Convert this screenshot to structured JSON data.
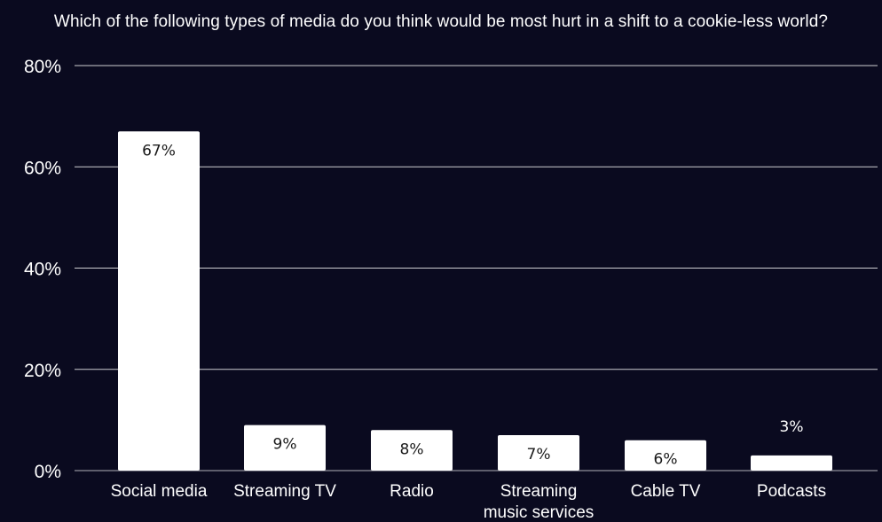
{
  "chart_data": {
    "type": "bar",
    "title": "Which of the following types of media do you think would be most hurt in a shift to a cookie-less world?",
    "xlabel": "",
    "ylabel": "",
    "categories": [
      "Social media",
      "Streaming TV",
      "Radio",
      "Streaming music services",
      "Cable TV",
      "Podcasts"
    ],
    "category_lines": [
      [
        "Social media"
      ],
      [
        "Streaming TV"
      ],
      [
        "Radio"
      ],
      [
        "Streaming",
        "music services"
      ],
      [
        "Cable TV"
      ],
      [
        "Podcasts"
      ]
    ],
    "values": [
      67,
      9,
      8,
      7,
      6,
      3
    ],
    "value_labels": [
      "67%",
      "9%",
      "8%",
      "7%",
      "6%",
      "3%"
    ],
    "ylim": [
      0,
      80
    ],
    "yticks": [
      0,
      20,
      40,
      60,
      80
    ],
    "ytick_labels": [
      "0%",
      "20%",
      "40%",
      "60%",
      "80%"
    ],
    "grid": true,
    "legend": "none",
    "colors": {
      "background": "#0a0a1f",
      "bar": "#ffffff",
      "gridline": "#ffffff",
      "text": "#ffffff",
      "label_inside": "#1a1a1a"
    }
  }
}
